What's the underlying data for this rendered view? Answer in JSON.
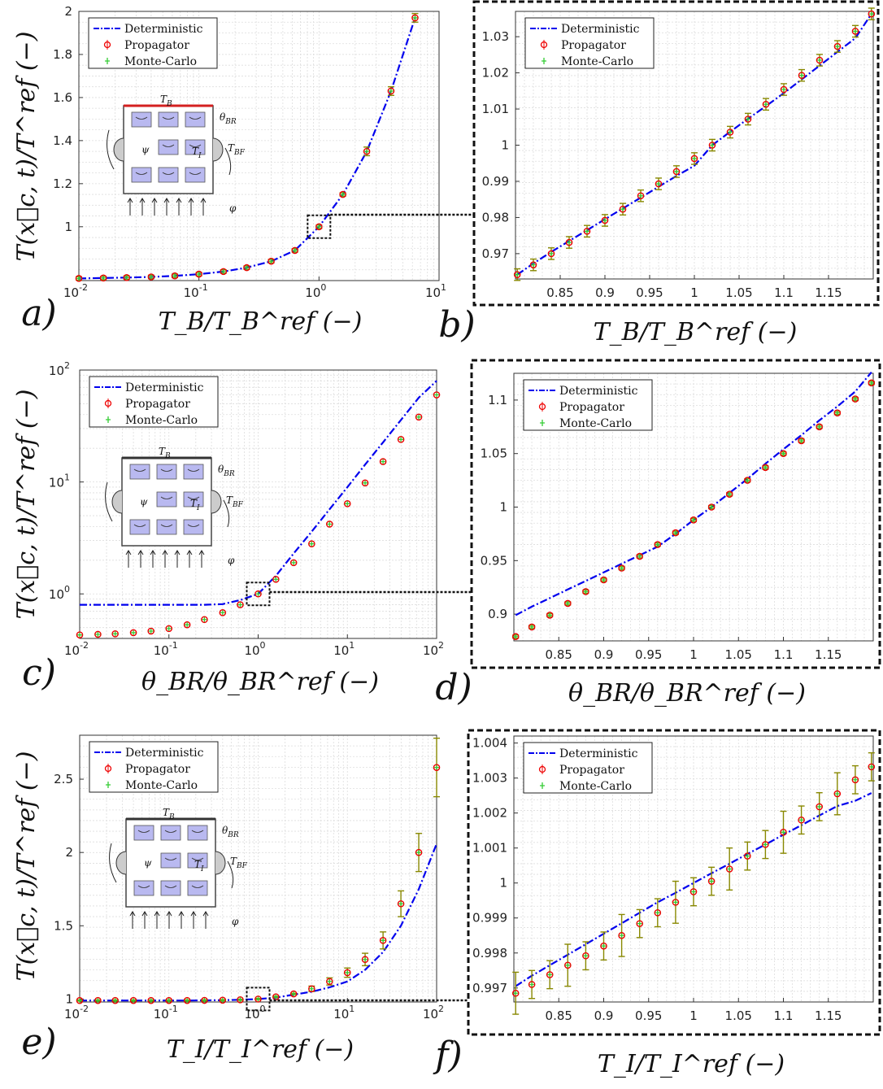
{
  "legend": {
    "deterministic": "Deterministic",
    "propagator": "Propagator",
    "monte_carlo": "Monte-Carlo"
  },
  "colors": {
    "deterministic": "#0000ee",
    "propagator": "#ee0000",
    "monte_carlo": "#33cc33",
    "errorbar": "#888800"
  },
  "labels": {
    "ylabel": "T(x⃗c, t)/T^ref (−)",
    "xlabel_a": "T_B/T_B^ref (−)",
    "xlabel_c": "θ_BR/θ_BR^ref (−)",
    "xlabel_e": "T_I/T_I^ref (−)",
    "panel_a": "a)",
    "panel_b": "b)",
    "panel_c": "c)",
    "panel_d": "d)",
    "panel_e": "e)",
    "panel_f": "f)"
  },
  "inset": {
    "TB": "T",
    "TB_sub": "B",
    "theta": "θ",
    "theta_sub": "BR",
    "TI": "T",
    "TI_sub": "I",
    "TBF": "T",
    "TBF_sub": "BF",
    "psi": "ψ",
    "phi": "φ"
  },
  "chart_data": [
    {
      "panel": "a",
      "type": "line",
      "xscale": "log",
      "xlim": [
        0.01,
        10
      ],
      "ylim": [
        0.75,
        2
      ],
      "yticks": [
        "1",
        "1.2",
        "1.4",
        "1.6",
        "1.8",
        "2"
      ],
      "x": [
        0.01,
        0.016,
        0.025,
        0.04,
        0.063,
        0.1,
        0.16,
        0.25,
        0.4,
        0.63,
        1.0,
        1.58,
        2.5,
        3.98,
        6.31
      ],
      "series": [
        {
          "name": "Deterministic",
          "values": [
            0.76,
            0.762,
            0.764,
            0.767,
            0.772,
            0.78,
            0.792,
            0.81,
            0.84,
            0.89,
            1.0,
            1.15,
            1.35,
            1.63,
            1.97
          ]
        },
        {
          "name": "Propagator",
          "values": [
            0.76,
            0.762,
            0.764,
            0.767,
            0.772,
            0.78,
            0.792,
            0.81,
            0.84,
            0.89,
            1.0,
            1.15,
            1.35,
            1.63,
            1.97
          ]
        },
        {
          "name": "Monte-Carlo",
          "values": [
            0.76,
            0.762,
            0.764,
            0.767,
            0.772,
            0.78,
            0.792,
            0.81,
            0.84,
            0.89,
            1.0,
            1.15,
            1.35,
            1.63,
            1.97
          ]
        }
      ]
    },
    {
      "panel": "b",
      "type": "line",
      "xlim": [
        0.8,
        1.2
      ],
      "ylim": [
        0.963,
        1.037
      ],
      "xticks": [
        "0.85",
        "0.9",
        "0.95",
        "1",
        "1.05",
        "1.1",
        "1.15"
      ],
      "yticks": [
        "0.97",
        "0.98",
        "0.99",
        "1",
        "1.01",
        "1.02",
        "1.03"
      ],
      "x": [
        0.802,
        0.82,
        0.84,
        0.86,
        0.88,
        0.9,
        0.92,
        0.94,
        0.96,
        0.98,
        1.0,
        1.02,
        1.04,
        1.06,
        1.08,
        1.1,
        1.12,
        1.14,
        1.16,
        1.18,
        1.198
      ],
      "series": [
        {
          "name": "Deterministic",
          "values": [
            0.9642,
            0.9673,
            0.9705,
            0.9735,
            0.9765,
            0.9795,
            0.9825,
            0.9855,
            0.9885,
            0.9915,
            0.9943,
            1.0,
            1.0037,
            1.0073,
            1.0108,
            1.0144,
            1.0182,
            1.022,
            1.0258,
            1.0296,
            1.0363
          ]
        },
        {
          "name": "Propagator",
          "values": [
            0.9642,
            0.9669,
            0.97,
            0.9731,
            0.9762,
            0.9792,
            0.9823,
            0.986,
            0.9893,
            0.9927,
            0.9963,
            1.0,
            1.0036,
            1.0072,
            1.0113,
            1.0154,
            1.0193,
            1.0235,
            1.0273,
            1.0315,
            1.0363
          ]
        },
        {
          "name": "Monte-Carlo",
          "values": [
            0.9642,
            0.9669,
            0.97,
            0.9731,
            0.9762,
            0.9792,
            0.9823,
            0.986,
            0.9893,
            0.9927,
            0.9963,
            1.0,
            1.0036,
            1.0072,
            1.0113,
            1.0154,
            1.0193,
            1.0235,
            1.0273,
            1.0315,
            1.0363
          ]
        }
      ]
    },
    {
      "panel": "c",
      "type": "line",
      "xscale": "log",
      "yscale": "log",
      "xlim": [
        0.01,
        100
      ],
      "ylim": [
        0.4,
        100
      ],
      "x": [
        0.01,
        0.016,
        0.025,
        0.04,
        0.063,
        0.1,
        0.16,
        0.25,
        0.4,
        0.63,
        1.0,
        1.58,
        2.5,
        3.98,
        6.31,
        10,
        15.8,
        25.1,
        39.8,
        63.1,
        100
      ],
      "series": [
        {
          "name": "Deterministic",
          "values": [
            0.8,
            0.8,
            0.8,
            0.8,
            0.8,
            0.8,
            0.8,
            0.8,
            0.81,
            0.88,
            1.0,
            1.45,
            2.3,
            3.6,
            5.7,
            9.0,
            14.3,
            22.6,
            35.8,
            56.7,
            80
          ]
        },
        {
          "name": "Propagator",
          "values": [
            0.43,
            0.435,
            0.44,
            0.45,
            0.465,
            0.49,
            0.53,
            0.59,
            0.68,
            0.8,
            1.0,
            1.35,
            1.9,
            2.8,
            4.2,
            6.4,
            9.8,
            15.2,
            24,
            38,
            60
          ]
        },
        {
          "name": "Monte-Carlo",
          "values": [
            0.43,
            0.435,
            0.44,
            0.45,
            0.465,
            0.49,
            0.53,
            0.59,
            0.68,
            0.8,
            1.0,
            1.35,
            1.9,
            2.8,
            4.2,
            6.4,
            9.8,
            15.2,
            24,
            38,
            60
          ]
        }
      ]
    },
    {
      "panel": "d",
      "type": "line",
      "xlim": [
        0.8,
        1.2
      ],
      "ylim": [
        0.875,
        1.125
      ],
      "xticks": [
        "0.85",
        "0.9",
        "0.95",
        "1",
        "1.05",
        "1.1",
        "1.15"
      ],
      "yticks": [
        "0.9",
        "0.95",
        "1",
        "1.05",
        "1.1"
      ],
      "x": [
        0.802,
        0.82,
        0.84,
        0.86,
        0.88,
        0.9,
        0.92,
        0.94,
        0.96,
        0.98,
        1.0,
        1.02,
        1.04,
        1.06,
        1.08,
        1.1,
        1.12,
        1.14,
        1.16,
        1.18,
        1.198
      ],
      "series": [
        {
          "name": "Deterministic",
          "values": [
            0.899,
            0.907,
            0.915,
            0.923,
            0.931,
            0.939,
            0.947,
            0.955,
            0.963,
            0.975,
            0.988,
            1.0,
            1.0132,
            1.0264,
            1.0405,
            1.054,
            1.0672,
            1.081,
            1.094,
            1.108,
            1.126
          ]
        },
        {
          "name": "Propagator",
          "values": [
            0.879,
            0.888,
            0.899,
            0.91,
            0.921,
            0.932,
            0.943,
            0.954,
            0.965,
            0.976,
            0.988,
            1.0,
            1.012,
            1.025,
            1.037,
            1.05,
            1.062,
            1.075,
            1.088,
            1.101,
            1.116
          ]
        },
        {
          "name": "Monte-Carlo",
          "values": [
            0.879,
            0.888,
            0.899,
            0.91,
            0.921,
            0.932,
            0.943,
            0.954,
            0.965,
            0.976,
            0.988,
            1.0,
            1.012,
            1.025,
            1.037,
            1.05,
            1.062,
            1.075,
            1.088,
            1.101,
            1.116
          ]
        }
      ]
    },
    {
      "panel": "e",
      "type": "line",
      "xscale": "log",
      "xlim": [
        0.01,
        100
      ],
      "ylim": [
        0.98,
        2.8
      ],
      "yticks": [
        "1",
        "1.5",
        "2",
        "2.5"
      ],
      "x": [
        0.01,
        0.016,
        0.025,
        0.04,
        0.063,
        0.1,
        0.16,
        0.25,
        0.4,
        0.63,
        1.0,
        1.58,
        2.5,
        3.98,
        6.31,
        10,
        15.8,
        25.1,
        39.8,
        63.1,
        100
      ],
      "series": [
        {
          "name": "Deterministic",
          "values": [
            0.99,
            0.99,
            0.99,
            0.99,
            0.99,
            0.99,
            0.99,
            0.991,
            0.992,
            0.995,
            1.0,
            1.01,
            1.03,
            1.05,
            1.08,
            1.12,
            1.2,
            1.32,
            1.5,
            1.75,
            2.06
          ]
        },
        {
          "name": "Propagator",
          "values": [
            0.99,
            0.99,
            0.99,
            0.99,
            0.99,
            0.99,
            0.99,
            0.991,
            0.992,
            0.995,
            1.0,
            1.015,
            1.035,
            1.07,
            1.12,
            1.18,
            1.27,
            1.4,
            1.65,
            2.0,
            2.58
          ]
        },
        {
          "name": "Monte-Carlo",
          "values": [
            0.99,
            0.99,
            0.99,
            0.99,
            0.99,
            0.99,
            0.99,
            0.991,
            0.992,
            0.995,
            1.0,
            1.015,
            1.035,
            1.07,
            1.12,
            1.18,
            1.27,
            1.4,
            1.65,
            2.0,
            2.58
          ]
        }
      ]
    },
    {
      "panel": "f",
      "type": "line",
      "xlim": [
        0.8,
        1.2
      ],
      "ylim": [
        0.9966,
        1.0042
      ],
      "xticks": [
        "0.85",
        "0.9",
        "0.95",
        "1",
        "1.05",
        "1.1",
        "1.15"
      ],
      "yticks": [
        "0.997",
        "0.998",
        "0.999",
        "1",
        "1.001",
        "1.002",
        "1.003",
        "1.004"
      ],
      "x": [
        0.802,
        0.82,
        0.84,
        0.86,
        0.88,
        0.9,
        0.92,
        0.94,
        0.96,
        0.98,
        1.0,
        1.02,
        1.04,
        1.06,
        1.08,
        1.1,
        1.12,
        1.14,
        1.16,
        1.18,
        1.198
      ],
      "series": [
        {
          "name": "Deterministic",
          "values": [
            0.99705,
            0.99735,
            0.99765,
            0.99795,
            0.99825,
            0.99855,
            0.99885,
            0.99915,
            0.99945,
            0.99972,
            1.0,
            1.00028,
            1.00055,
            1.00083,
            1.0011,
            1.00138,
            1.00165,
            1.00193,
            1.0022,
            1.00235,
            1.00257
          ]
        },
        {
          "name": "Propagator",
          "values": [
            0.99685,
            0.9971,
            0.99738,
            0.99765,
            0.99792,
            0.9982,
            0.9985,
            0.99884,
            0.99915,
            0.99945,
            0.99975,
            1.00005,
            1.0004,
            1.00077,
            1.0011,
            1.00145,
            1.0018,
            1.00218,
            1.00255,
            1.00295,
            1.00332
          ]
        },
        {
          "name": "Monte-Carlo",
          "values": [
            0.99685,
            0.9971,
            0.99738,
            0.99765,
            0.99792,
            0.9982,
            0.9985,
            0.99884,
            0.99915,
            0.99945,
            0.99975,
            1.00005,
            1.0004,
            1.00077,
            1.0011,
            1.00145,
            1.0018,
            1.00218,
            1.00255,
            1.00295,
            1.00332
          ]
        }
      ]
    }
  ]
}
